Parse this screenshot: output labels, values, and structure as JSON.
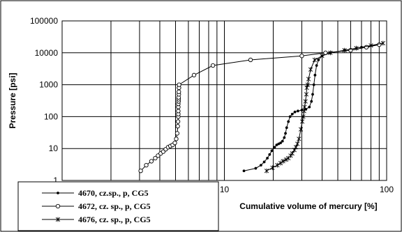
{
  "chart_data": {
    "type": "scatter",
    "title": "",
    "xlabel": "Cumulative volume of mercury [%]",
    "ylabel": "Pressure [psi]",
    "xscale": "log",
    "yscale": "log",
    "xlim": [
      1,
      100
    ],
    "ylim": [
      1,
      100000
    ],
    "x_ticks": [
      "10",
      "100"
    ],
    "y_ticks": [
      "1",
      "10",
      "100",
      "1000",
      "10000",
      "100000"
    ],
    "grid": true,
    "legend_position": "bottom-left",
    "series": [
      {
        "name": "4670, cz.sp., p, CG5",
        "marker": "dot",
        "color": "#000000",
        "x": [
          13.2,
          15.6,
          16.8,
          17.6,
          18.4,
          19.0,
          19.6,
          20.4,
          21.0,
          21.6,
          22.2,
          22.8,
          23.4,
          23.8,
          24.2,
          24.8,
          25.4,
          26.2,
          27.2,
          28.4,
          30.0,
          31.8,
          33.4,
          34.4,
          35.0,
          35.6,
          36.2,
          37.0,
          38.0,
          40.0,
          45.0,
          55.0,
          70.0,
          90.0
        ],
        "y": [
          2,
          2.4,
          3,
          3.8,
          5,
          6.5,
          8.5,
          11,
          13,
          14,
          15,
          17,
          22,
          30,
          45,
          70,
          100,
          120,
          140,
          150,
          160,
          170,
          200,
          300,
          500,
          1000,
          2000,
          4000,
          6000,
          8000,
          10000,
          12000,
          15000,
          18000
        ]
      },
      {
        "name": "4672, cz. sp., p, CG5",
        "marker": "circle",
        "color": "#000000",
        "x": [
          3.05,
          3.3,
          3.55,
          3.75,
          3.9,
          4.05,
          4.2,
          4.35,
          4.5,
          4.65,
          4.8,
          4.95,
          5.05,
          5.12,
          5.16,
          5.18,
          5.2,
          5.2,
          5.2,
          5.2,
          5.2,
          5.22,
          5.22,
          5.22,
          5.24,
          5.24,
          5.25,
          5.26,
          6.5,
          8.5,
          14.5,
          30.0,
          42.0,
          60.0,
          75.0,
          90.0
        ],
        "y": [
          2,
          3,
          4,
          5,
          6,
          7,
          8,
          9.5,
          11,
          12,
          13,
          15,
          20,
          30,
          50,
          70,
          100,
          120,
          150,
          200,
          250,
          300,
          350,
          400,
          500,
          600,
          800,
          1000,
          2000,
          4000,
          6000,
          8000,
          10000,
          12000,
          15000,
          18000
        ]
      },
      {
        "name": "4676, cz. sp., p, CG5",
        "marker": "star",
        "color": "#000000",
        "x": [
          18.2,
          19.8,
          21.2,
          22.2,
          23.0,
          24.0,
          24.8,
          25.6,
          26.2,
          27.0,
          27.6,
          28.2,
          28.8,
          29.6,
          30.2,
          30.6,
          31.0,
          31.2,
          31.6,
          32.0,
          32.2,
          32.6,
          33.0,
          34.0,
          36.0,
          40.0,
          45.0,
          55.0,
          65.0,
          80.0,
          95.0
        ],
        "y": [
          2,
          2.5,
          3,
          3.5,
          4,
          4.5,
          5,
          6,
          7,
          9,
          11,
          14,
          20,
          40,
          70,
          100,
          150,
          200,
          300,
          500,
          800,
          1000,
          1500,
          3000,
          6000,
          8000,
          10000,
          12000,
          14000,
          17000,
          20000
        ]
      }
    ]
  }
}
